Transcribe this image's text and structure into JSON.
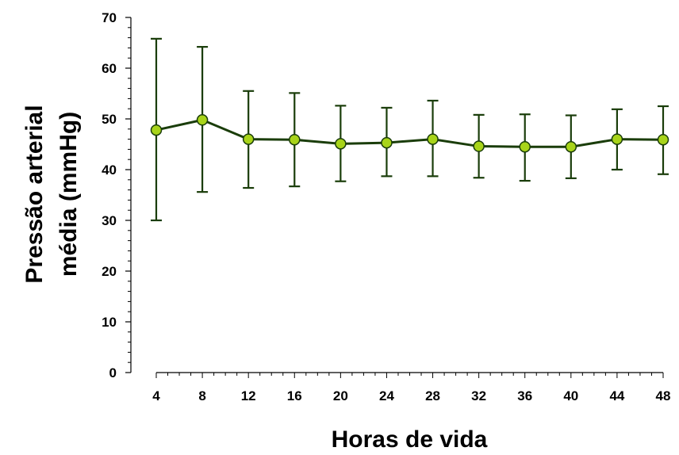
{
  "chart_data": {
    "type": "line",
    "xlabel": "Horas de vida",
    "ylabel_line1": "Pressão arterial",
    "ylabel_line2": "média (mmHg)",
    "x": [
      4,
      8,
      12,
      16,
      20,
      24,
      28,
      32,
      36,
      40,
      44,
      48
    ],
    "series": [
      {
        "values": [
          47.8,
          49.8,
          46.0,
          45.9,
          45.1,
          45.3,
          46.0,
          44.6,
          44.5,
          44.5,
          46.0,
          45.9
        ],
        "error_upper": [
          65.8,
          64.2,
          55.5,
          55.1,
          52.6,
          52.2,
          53.6,
          50.8,
          50.9,
          50.7,
          51.9,
          52.5
        ],
        "error_lower": [
          30.0,
          35.6,
          36.4,
          36.7,
          37.7,
          38.7,
          38.7,
          38.4,
          37.8,
          38.3,
          40.0,
          39.1
        ]
      }
    ],
    "xlim": [
      0,
      48
    ],
    "ylim": [
      0,
      70
    ],
    "xticks": [
      4,
      8,
      12,
      16,
      20,
      24,
      28,
      32,
      36,
      40,
      44,
      48
    ],
    "yticks": [
      0,
      10,
      20,
      30,
      40,
      50,
      60,
      70
    ],
    "grid": false,
    "line_color": "#1a3d0a",
    "marker_fill": "#a8d41a",
    "marker_edge": "#1a3d0a"
  }
}
